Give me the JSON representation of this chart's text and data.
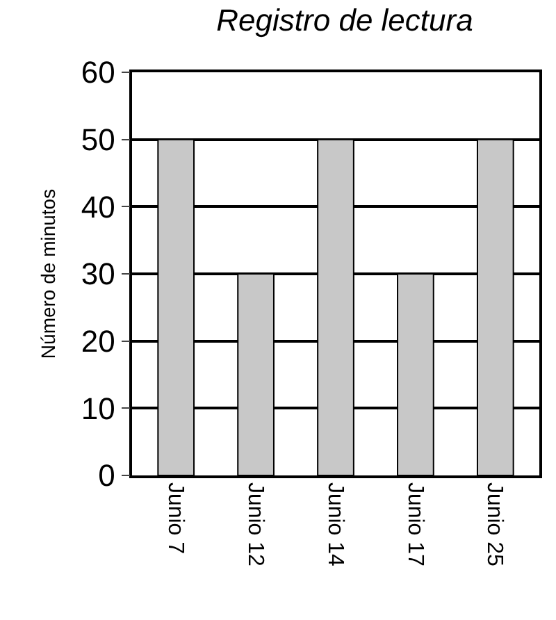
{
  "chart_data": {
    "type": "bar",
    "title": "Registro de lectura",
    "ylabel": "Número de minutos",
    "categories": [
      "Junio 7",
      "Junio 12",
      "Junio 14",
      "Junio 17",
      "Junio 25"
    ],
    "values": [
      50,
      30,
      50,
      30,
      50
    ],
    "color": "#c8c8c8",
    "ylim": [
      0,
      60
    ],
    "yticks": [
      0,
      10,
      20,
      30,
      40,
      50,
      60
    ],
    "grid": "y"
  }
}
